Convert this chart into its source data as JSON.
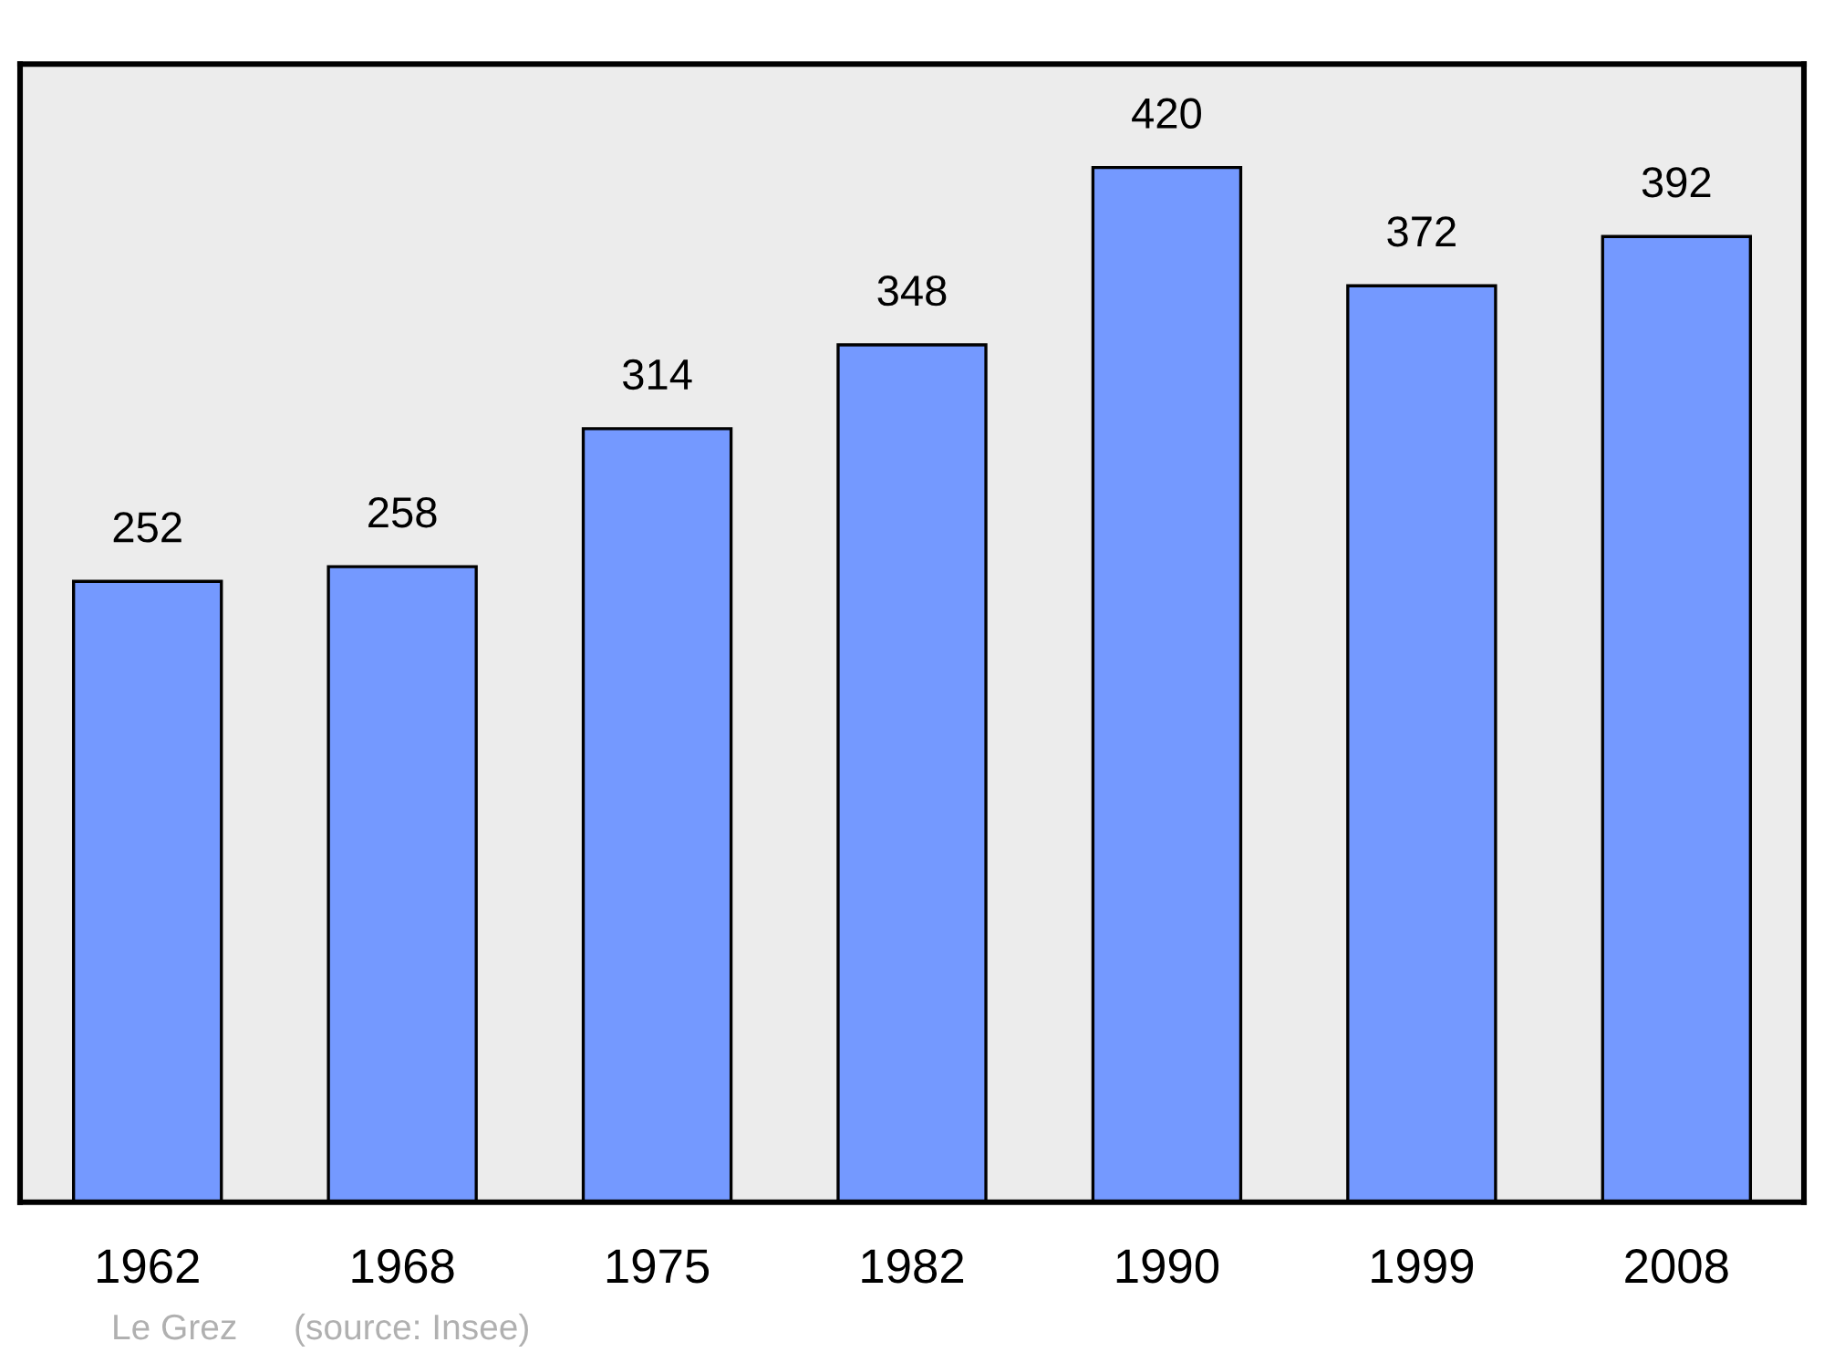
{
  "chart_data": {
    "type": "bar",
    "categories": [
      "1962",
      "1968",
      "1975",
      "1982",
      "1990",
      "1999",
      "2008"
    ],
    "values": [
      252,
      258,
      314,
      348,
      420,
      372,
      392
    ],
    "color": "#7499ff",
    "data_labels": true,
    "grid": false,
    "legend": false,
    "annotations": [
      "Le Grez",
      "(source: Insee)"
    ]
  }
}
